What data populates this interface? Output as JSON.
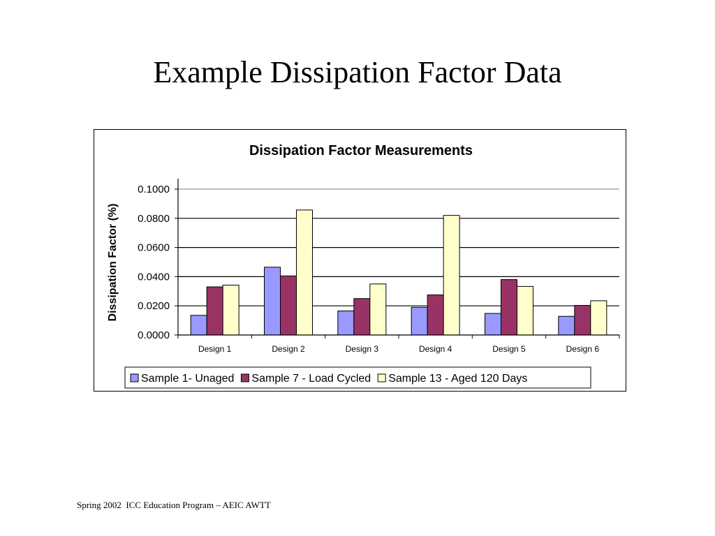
{
  "slide": {
    "title": "Example Dissipation Factor Data",
    "footer": "Spring 2002  ICC Education Program – AEIC AWTT"
  },
  "chart_data": {
    "type": "bar",
    "title": "Dissipation Factor Measurements",
    "xlabel": "",
    "ylabel": "Dissipation Factor (%)",
    "categories": [
      "Design 1",
      "Design 2",
      "Design 3",
      "Design 4",
      "Design 5",
      "Design 6"
    ],
    "ylim": [
      0,
      0.1
    ],
    "yticks": [
      "0.0000",
      "0.0200",
      "0.0400",
      "0.0600",
      "0.0800",
      "0.1000"
    ],
    "ytick_values": [
      0,
      0.02,
      0.04,
      0.06,
      0.08,
      0.1
    ],
    "grid": true,
    "legend_position": "bottom",
    "series": [
      {
        "name": "Sample 1- Unaged",
        "color": "#9999ff",
        "values": [
          0.0135,
          0.0465,
          0.0165,
          0.019,
          0.0148,
          0.0128
        ]
      },
      {
        "name": "Sample 7 - Load Cycled",
        "color": "#993366",
        "values": [
          0.033,
          0.0405,
          0.025,
          0.0275,
          0.038,
          0.0203
        ]
      },
      {
        "name": "Sample 13 - Aged 120 Days",
        "color": "#ffffcc",
        "values": [
          0.0342,
          0.0857,
          0.035,
          0.082,
          0.0333,
          0.0235
        ]
      }
    ]
  }
}
